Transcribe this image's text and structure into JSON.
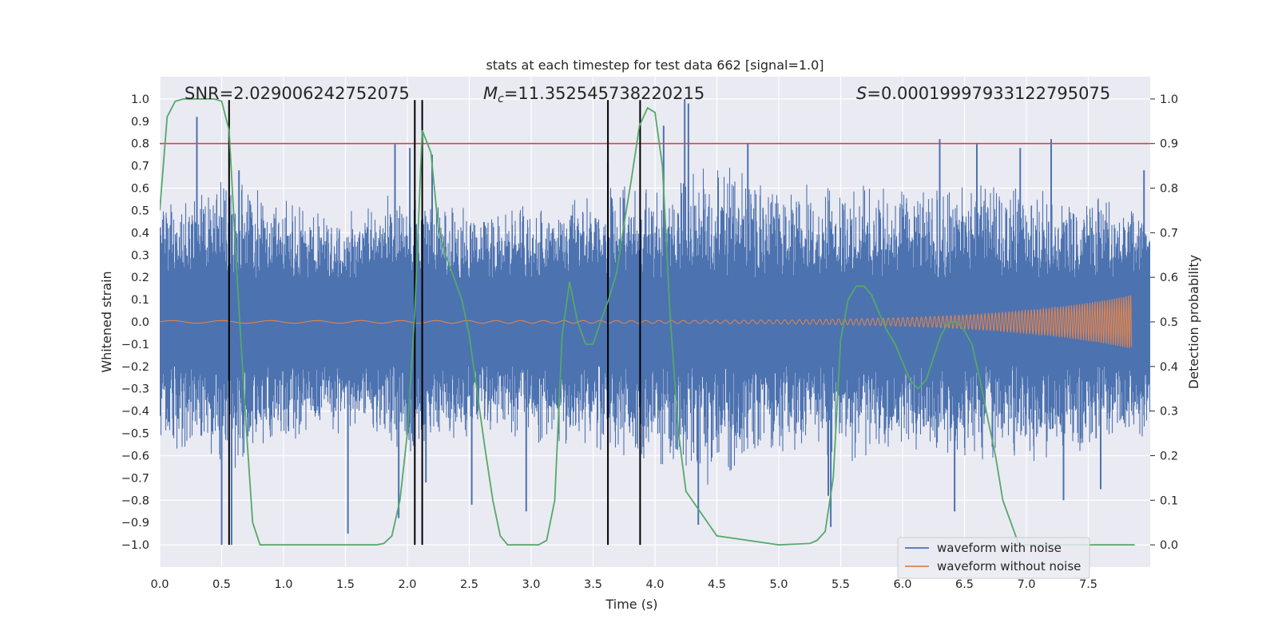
{
  "chart_data": {
    "type": "line",
    "title": "stats at each timestep for test data 662 [signal=1.0]",
    "xlabel": "Time (s)",
    "ylabel_left": "Whitened strain",
    "ylabel_right": "Detection probability",
    "xlim": [
      0.0,
      8.0
    ],
    "ylim_left": [
      -1.1,
      1.1
    ],
    "ylim_right": [
      -0.05,
      1.05
    ],
    "x_ticks": [
      "0.0",
      "0.5",
      "1.0",
      "1.5",
      "2.0",
      "2.5",
      "3.0",
      "3.5",
      "4.0",
      "4.5",
      "5.0",
      "5.5",
      "6.0",
      "6.5",
      "7.0",
      "7.5"
    ],
    "x_tick_values": [
      0,
      0.5,
      1,
      1.5,
      2,
      2.5,
      3,
      3.5,
      4,
      4.5,
      5,
      5.5,
      6,
      6.5,
      7,
      7.5
    ],
    "y_left_ticks": [
      "1.0",
      "0.9",
      "0.8",
      "0.7",
      "0.6",
      "0.5",
      "0.4",
      "0.3",
      "0.2",
      "0.1",
      "0.0",
      "−0.1",
      "−0.2",
      "−0.3",
      "−0.4",
      "−0.5",
      "−0.6",
      "−0.7",
      "−0.8",
      "−0.9",
      "−1.0"
    ],
    "y_left_tick_values": [
      1,
      0.9,
      0.8,
      0.7,
      0.6,
      0.5,
      0.4,
      0.3,
      0.2,
      0.1,
      0,
      -0.1,
      -0.2,
      -0.3,
      -0.4,
      -0.5,
      -0.6,
      -0.7,
      -0.8,
      -0.9,
      -1.0
    ],
    "y_right_ticks": [
      "1.0",
      "0.9",
      "0.8",
      "0.7",
      "0.6",
      "0.5",
      "0.4",
      "0.3",
      "0.2",
      "0.1",
      "0.0"
    ],
    "y_right_tick_values": [
      1,
      0.9,
      0.8,
      0.7,
      0.6,
      0.5,
      0.4,
      0.3,
      0.2,
      0.1,
      0
    ],
    "annotations": {
      "snr": "SNR=2.029006242752075",
      "mc_symbol": "M",
      "mc_sub": "c",
      "mc_value": "=11.352545738220215",
      "s_symbol": "S",
      "s_value": "=0.00019997933122795075"
    },
    "threshold_right": 0.9,
    "vertical_lines_x": [
      0.56,
      2.06,
      2.12,
      3.62,
      3.88
    ],
    "noise_envelope": {
      "t": [
        0.0,
        0.5,
        1.0,
        1.5,
        2.0,
        2.5,
        3.0,
        3.5,
        4.0,
        4.5,
        5.0,
        5.5,
        6.0,
        6.5,
        7.0,
        7.5,
        8.0
      ],
      "amp": [
        0.55,
        0.7,
        0.55,
        0.5,
        0.6,
        0.55,
        0.55,
        0.6,
        0.65,
        0.75,
        0.6,
        0.65,
        0.6,
        0.65,
        0.65,
        0.6,
        0.55
      ]
    },
    "noise_spikes": [
      {
        "t": 0.3,
        "v": 0.92
      },
      {
        "t": 0.5,
        "v": -1.0
      },
      {
        "t": 0.58,
        "v": -1.0
      },
      {
        "t": 0.64,
        "v": 0.68
      },
      {
        "t": 1.52,
        "v": -0.95
      },
      {
        "t": 1.9,
        "v": 0.8
      },
      {
        "t": 1.93,
        "v": -0.88
      },
      {
        "t": 2.02,
        "v": 0.78
      },
      {
        "t": 2.15,
        "v": -0.72
      },
      {
        "t": 2.2,
        "v": 0.75
      },
      {
        "t": 2.52,
        "v": -0.82
      },
      {
        "t": 2.96,
        "v": -0.85
      },
      {
        "t": 3.62,
        "v": 0.72
      },
      {
        "t": 4.07,
        "v": 0.88
      },
      {
        "t": 4.24,
        "v": 1.0
      },
      {
        "t": 4.27,
        "v": 0.98
      },
      {
        "t": 4.35,
        "v": -0.91
      },
      {
        "t": 4.75,
        "v": 0.8
      },
      {
        "t": 5.4,
        "v": -0.78
      },
      {
        "t": 5.42,
        "v": -0.92
      },
      {
        "t": 6.3,
        "v": 0.82
      },
      {
        "t": 6.42,
        "v": -0.85
      },
      {
        "t": 6.6,
        "v": 0.8
      },
      {
        "t": 6.95,
        "v": 0.78
      },
      {
        "t": 7.2,
        "v": 0.82
      },
      {
        "t": 7.3,
        "v": -0.8
      },
      {
        "t": 7.6,
        "v": -0.75
      },
      {
        "t": 7.95,
        "v": 0.68
      }
    ],
    "detection_probability": {
      "t": [
        0.0,
        0.06,
        0.125,
        0.19,
        0.25,
        0.31,
        0.375,
        0.44,
        0.5,
        0.56,
        0.625,
        0.69,
        0.75,
        0.81,
        0.875,
        1.0,
        1.5,
        1.75,
        1.81,
        1.875,
        1.94,
        2.0,
        2.06,
        2.12,
        2.19,
        2.25,
        2.31,
        2.375,
        2.44,
        2.5,
        2.56,
        2.625,
        2.69,
        2.75,
        2.81,
        2.875,
        2.94,
        3.0,
        3.06,
        3.125,
        3.19,
        3.25,
        3.31,
        3.375,
        3.44,
        3.5,
        3.56,
        3.625,
        3.69,
        3.75,
        3.81,
        3.875,
        3.94,
        4.0,
        4.06,
        4.125,
        4.19,
        4.25,
        4.5,
        5.0,
        5.25,
        5.31,
        5.375,
        5.44,
        5.5,
        5.56,
        5.625,
        5.69,
        5.75,
        5.81,
        5.875,
        5.94,
        6.0,
        6.06,
        6.125,
        6.19,
        6.25,
        6.31,
        6.375,
        6.44,
        6.5,
        6.56,
        6.625,
        6.69,
        6.75,
        6.81,
        6.875,
        6.94,
        7.0,
        7.5,
        7.875
      ],
      "p": [
        0.75,
        0.96,
        0.995,
        1.0,
        1.0,
        1.0,
        1.0,
        1.0,
        0.995,
        0.93,
        0.6,
        0.3,
        0.05,
        0.0,
        0.0,
        0.0,
        0.0,
        0.0,
        0.003,
        0.02,
        0.1,
        0.25,
        0.52,
        0.93,
        0.88,
        0.71,
        0.65,
        0.6,
        0.55,
        0.47,
        0.35,
        0.22,
        0.1,
        0.02,
        0.0,
        0.0,
        0.0,
        0.0,
        0.0,
        0.01,
        0.1,
        0.47,
        0.59,
        0.5,
        0.45,
        0.45,
        0.5,
        0.55,
        0.61,
        0.72,
        0.82,
        0.94,
        0.98,
        0.97,
        0.85,
        0.5,
        0.25,
        0.12,
        0.02,
        0.0,
        0.003,
        0.01,
        0.03,
        0.15,
        0.46,
        0.55,
        0.58,
        0.58,
        0.56,
        0.52,
        0.48,
        0.45,
        0.41,
        0.37,
        0.35,
        0.37,
        0.42,
        0.47,
        0.5,
        0.5,
        0.48,
        0.45,
        0.37,
        0.28,
        0.2,
        0.1,
        0.05,
        0.0,
        0.0,
        0.0,
        0.0
      ]
    },
    "clean_waveform": {
      "t_start": 0.0,
      "t_end": 7.85,
      "f0": 2.5,
      "f1": 55,
      "a0": 0.006,
      "a1": 0.12
    },
    "legend": [
      {
        "label": "waveform with noise",
        "color": "#4c72b0"
      },
      {
        "label": "waveform without noise",
        "color": "#dd8452"
      }
    ],
    "legend_position": "lower-right",
    "colors": {
      "noise": "#4c72b0",
      "clean": "#dd8452",
      "probability": "#55a868",
      "threshold": "#c44e52",
      "marker": "#000000",
      "axes_bg": "#eaeaf2",
      "grid": "#ffffff"
    }
  }
}
